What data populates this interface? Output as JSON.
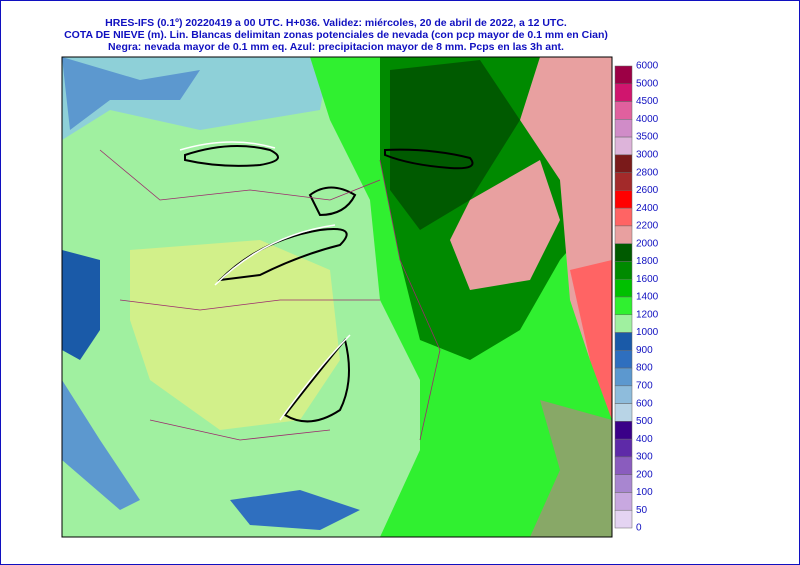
{
  "header": {
    "lines": [
      "HRES-IFS (0.1º) 20220419 a 00 UTC.  H+036. Validez: miércoles, 20 de abril de 2022,  a  12 UTC.",
      "COTA DE NIEVE (m). Lin. Blancas delimitan zonas potenciales de nevada (con pcp mayor de 0.1 mm en Cian)",
      "Negra: nevada mayor de 0.1 mm eq. Azul: precipitacion mayor de 8 mm. Pcps en las 3h ant."
    ]
  },
  "colorbar": {
    "labels": [
      6000,
      5000,
      4500,
      4000,
      3500,
      3000,
      2800,
      2600,
      2400,
      2200,
      2000,
      1800,
      1600,
      1400,
      1200,
      1000,
      900,
      800,
      700,
      600,
      500,
      400,
      300,
      200,
      100,
      50,
      0
    ],
    "colors": [
      "#9c0045",
      "#d0156e",
      "#e0609e",
      "#d08cc8",
      "#ddb4da",
      "#7a1a1a",
      "#a32a2a",
      "#ff0000",
      "#ff6464",
      "#e8a0a0",
      "#005a00",
      "#008a00",
      "#00c000",
      "#30f030",
      "#a0f0a0",
      "#1a5aa8",
      "#2f6fbf",
      "#5c98cf",
      "#8ebcdc",
      "#b8d4e6",
      "#3a0088",
      "#5e2aa8",
      "#8a5cbe",
      "#a886d0",
      "#c8a8e0",
      "#e4d4f2"
    ]
  }
}
